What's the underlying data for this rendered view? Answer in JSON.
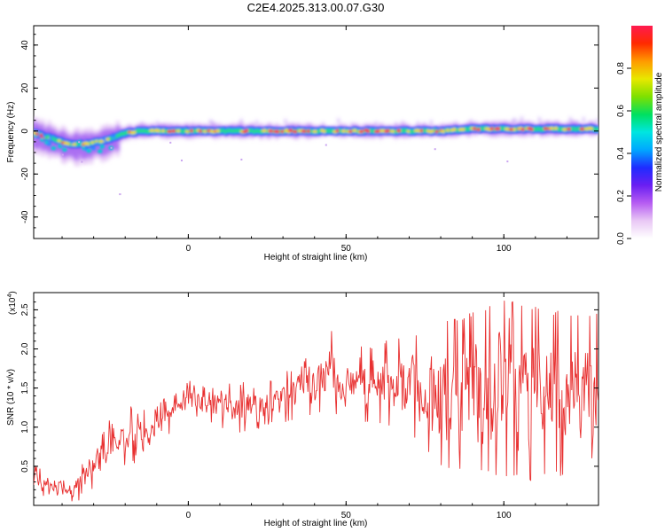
{
  "title": "C2E4.2025.313.00.07.G30",
  "chart_data": [
    {
      "type": "heatmap",
      "xlabel": "Height of straight line (km)",
      "ylabel": "Frequency (Hz)",
      "xlim": [
        -49,
        130
      ],
      "ylim": [
        -50,
        49
      ],
      "x_ticks": [
        0,
        50,
        100
      ],
      "y_ticks": [
        -40,
        -20,
        0,
        20,
        40
      ],
      "colorbar": {
        "label": "Normalized spectral amplitude",
        "range": [
          0,
          1
        ],
        "ticks": [
          "0.0",
          "0.2",
          "0.4",
          "0.6",
          "0.8"
        ],
        "colors": [
          "#ffffff",
          "#e9c8f5",
          "#b65cf2",
          "#6a1ff2",
          "#1f2cff",
          "#00a8ff",
          "#00e6e0",
          "#00e060",
          "#7fe000",
          "#e8e800",
          "#ff9a00",
          "#ff2a00",
          "#ff1a50"
        ]
      },
      "ridge": [
        [
          -49,
          -1
        ],
        [
          -44,
          -3
        ],
        [
          -38,
          -6
        ],
        [
          -33,
          -6
        ],
        [
          -28,
          -5
        ],
        [
          -24,
          -3
        ],
        [
          -20,
          -1
        ],
        [
          -15,
          0
        ],
        [
          -10,
          0
        ],
        [
          0,
          0
        ],
        [
          10,
          0
        ],
        [
          20,
          0
        ],
        [
          30,
          0
        ],
        [
          40,
          0
        ],
        [
          50,
          0
        ],
        [
          60,
          0
        ],
        [
          70,
          0
        ],
        [
          80,
          0
        ],
        [
          90,
          1
        ],
        [
          100,
          1
        ],
        [
          110,
          1
        ],
        [
          120,
          1
        ],
        [
          130,
          1
        ]
      ]
    },
    {
      "type": "line",
      "xlabel": "Height of straight line (km)",
      "ylabel": "SNR (10 * v/v)",
      "y_multiplier": "(x10",
      "y_multiplier_exp": "4",
      "xlim": [
        -49,
        130
      ],
      "ylim": [
        0,
        2.72
      ],
      "x_ticks": [
        0,
        50,
        100
      ],
      "y_ticks": [
        "0.5",
        "1.0",
        "1.5",
        "2.0",
        "2.5"
      ],
      "series": [
        {
          "color": "#e83030",
          "envelope": [
            [
              -49,
              0.05,
              0.55
            ],
            [
              -40,
              0.05,
              0.35
            ],
            [
              -35,
              0.05,
              0.45
            ],
            [
              -30,
              0.2,
              0.85
            ],
            [
              -25,
              0.4,
              1.1
            ],
            [
              -20,
              0.5,
              1.3
            ],
            [
              -15,
              0.55,
              1.25
            ],
            [
              -10,
              0.7,
              1.3
            ],
            [
              -5,
              0.95,
              1.45
            ],
            [
              0,
              1.15,
              1.65
            ],
            [
              5,
              1.1,
              1.55
            ],
            [
              10,
              1.0,
              1.55
            ],
            [
              15,
              0.9,
              1.6
            ],
            [
              20,
              0.95,
              1.55
            ],
            [
              25,
              1.0,
              1.65
            ],
            [
              30,
              1.05,
              1.7
            ],
            [
              35,
              1.1,
              1.85
            ],
            [
              40,
              1.15,
              2.0
            ],
            [
              45,
              1.2,
              2.25
            ],
            [
              50,
              1.1,
              2.0
            ],
            [
              55,
              1.05,
              2.05
            ],
            [
              60,
              1.05,
              2.1
            ],
            [
              65,
              1.0,
              2.15
            ],
            [
              70,
              0.9,
              2.2
            ],
            [
              75,
              0.7,
              2.25
            ],
            [
              80,
              0.5,
              2.35
            ],
            [
              85,
              0.45,
              2.4
            ],
            [
              90,
              0.45,
              2.5
            ],
            [
              95,
              0.4,
              2.55
            ],
            [
              100,
              0.35,
              2.65
            ],
            [
              105,
              0.35,
              2.6
            ],
            [
              110,
              0.3,
              2.55
            ],
            [
              115,
              0.4,
              2.5
            ],
            [
              120,
              0.35,
              2.5
            ],
            [
              125,
              0.5,
              2.45
            ],
            [
              130,
              0.6,
              2.5
            ]
          ]
        }
      ]
    }
  ]
}
